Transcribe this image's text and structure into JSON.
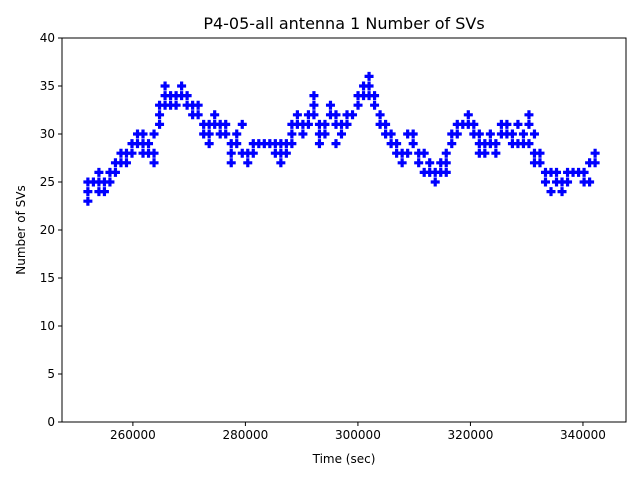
{
  "chart_data": {
    "type": "scatter",
    "title": "P4-05-all antenna 1 Number of SVs",
    "xlabel": "Time (sec)",
    "ylabel": "Number of SVs",
    "xlim": [
      247400,
      347650
    ],
    "ylim": [
      0,
      40
    ],
    "xticks": [
      260000,
      280000,
      300000,
      320000,
      340000
    ],
    "yticks": [
      0,
      5,
      10,
      15,
      20,
      25,
      30,
      35,
      40
    ],
    "grid": false,
    "marker": "filled-plus",
    "color": "#0000ff",
    "samples": [
      [
        252000,
        [
          23,
          24,
          25
        ]
      ],
      [
        252980,
        [
          25
        ]
      ],
      [
        253960,
        [
          24,
          25,
          26
        ]
      ],
      [
        254940,
        [
          24,
          25
        ]
      ],
      [
        255920,
        [
          25,
          26
        ]
      ],
      [
        256900,
        [
          26,
          27
        ]
      ],
      [
        257880,
        [
          27,
          28
        ]
      ],
      [
        258860,
        [
          28,
          27
        ]
      ],
      [
        259840,
        [
          28,
          29
        ]
      ],
      [
        260820,
        [
          29,
          30
        ]
      ],
      [
        261800,
        [
          30,
          28,
          29
        ]
      ],
      [
        262780,
        [
          28,
          29
        ]
      ],
      [
        263760,
        [
          27,
          28,
          30
        ]
      ],
      [
        264740,
        [
          31,
          32,
          33
        ]
      ],
      [
        265720,
        [
          33,
          34,
          35
        ]
      ],
      [
        266700,
        [
          34,
          33
        ]
      ],
      [
        267680,
        [
          34,
          33
        ]
      ],
      [
        268660,
        [
          34,
          35
        ]
      ],
      [
        269640,
        [
          34,
          33
        ]
      ],
      [
        270620,
        [
          33,
          32
        ]
      ],
      [
        271600,
        [
          32,
          33
        ]
      ],
      [
        272580,
        [
          31,
          30
        ]
      ],
      [
        273560,
        [
          30,
          29,
          31
        ]
      ],
      [
        274540,
        [
          31,
          32
        ]
      ],
      [
        275520,
        [
          30,
          31
        ]
      ],
      [
        276500,
        [
          31,
          30
        ]
      ],
      [
        277480,
        [
          28,
          27,
          29
        ]
      ],
      [
        278460,
        [
          29,
          30
        ]
      ],
      [
        279440,
        [
          31,
          28
        ]
      ],
      [
        280420,
        [
          28,
          27
        ]
      ],
      [
        281400,
        [
          28,
          29
        ]
      ],
      [
        282380,
        [
          29
        ]
      ],
      [
        283360,
        [
          29
        ]
      ],
      [
        284340,
        [
          29
        ]
      ],
      [
        285320,
        [
          29,
          28
        ]
      ],
      [
        286300,
        [
          28,
          27,
          29
        ]
      ],
      [
        287280,
        [
          29,
          28
        ]
      ],
      [
        288260,
        [
          30,
          31,
          29
        ]
      ],
      [
        289240,
        [
          32,
          31
        ]
      ],
      [
        290220,
        [
          31,
          30
        ]
      ],
      [
        291200,
        [
          31,
          32
        ]
      ],
      [
        292180,
        [
          33,
          34,
          32
        ]
      ],
      [
        293160,
        [
          30,
          29,
          31
        ]
      ],
      [
        294140,
        [
          30,
          31
        ]
      ],
      [
        295120,
        [
          32,
          33
        ]
      ],
      [
        296100,
        [
          32,
          29,
          31
        ]
      ],
      [
        297080,
        [
          30,
          31
        ]
      ],
      [
        298060,
        [
          32,
          31
        ]
      ],
      [
        299040,
        [
          32
        ]
      ],
      [
        300020,
        [
          34,
          33
        ]
      ],
      [
        301000,
        [
          34,
          35
        ]
      ],
      [
        301980,
        [
          35,
          36,
          34
        ]
      ],
      [
        302960,
        [
          34,
          33
        ]
      ],
      [
        303940,
        [
          32,
          31
        ]
      ],
      [
        304920,
        [
          31,
          30
        ]
      ],
      [
        305900,
        [
          30,
          29
        ]
      ],
      [
        306880,
        [
          29,
          28
        ]
      ],
      [
        307860,
        [
          28,
          27
        ]
      ],
      [
        308840,
        [
          28,
          30
        ]
      ],
      [
        309820,
        [
          30,
          29
        ]
      ],
      [
        310800,
        [
          27,
          28
        ]
      ],
      [
        311780,
        [
          26,
          28
        ]
      ],
      [
        312760,
        [
          27,
          26
        ]
      ],
      [
        313740,
        [
          26,
          25
        ]
      ],
      [
        314720,
        [
          27,
          26
        ]
      ],
      [
        315700,
        [
          28,
          27,
          26
        ]
      ],
      [
        316680,
        [
          29,
          30
        ]
      ],
      [
        317660,
        [
          30,
          31
        ]
      ],
      [
        318640,
        [
          31
        ]
      ],
      [
        319620,
        [
          31,
          32
        ]
      ],
      [
        320600,
        [
          31,
          30
        ]
      ],
      [
        321580,
        [
          28,
          29,
          30
        ]
      ],
      [
        322560,
        [
          29,
          28
        ]
      ],
      [
        323540,
        [
          30,
          29
        ]
      ],
      [
        324520,
        [
          29,
          28
        ]
      ],
      [
        325500,
        [
          30,
          31
        ]
      ],
      [
        326480,
        [
          31,
          30
        ]
      ],
      [
        327460,
        [
          30,
          29
        ]
      ],
      [
        328440,
        [
          31,
          29
        ]
      ],
      [
        329420,
        [
          29,
          30
        ]
      ],
      [
        330400,
        [
          32,
          31,
          29
        ]
      ],
      [
        331380,
        [
          30,
          28,
          27
        ]
      ],
      [
        332360,
        [
          27,
          28
        ]
      ],
      [
        333340,
        [
          26,
          25
        ]
      ],
      [
        334320,
        [
          26,
          24
        ]
      ],
      [
        335300,
        [
          25,
          26
        ]
      ],
      [
        336280,
        [
          24,
          25
        ]
      ],
      [
        337260,
        [
          25,
          26
        ]
      ],
      [
        338240,
        [
          26
        ]
      ],
      [
        339220,
        [
          26
        ]
      ],
      [
        340200,
        [
          26,
          25
        ]
      ],
      [
        341180,
        [
          27,
          25
        ]
      ],
      [
        342160,
        [
          28,
          27
        ]
      ]
    ]
  }
}
